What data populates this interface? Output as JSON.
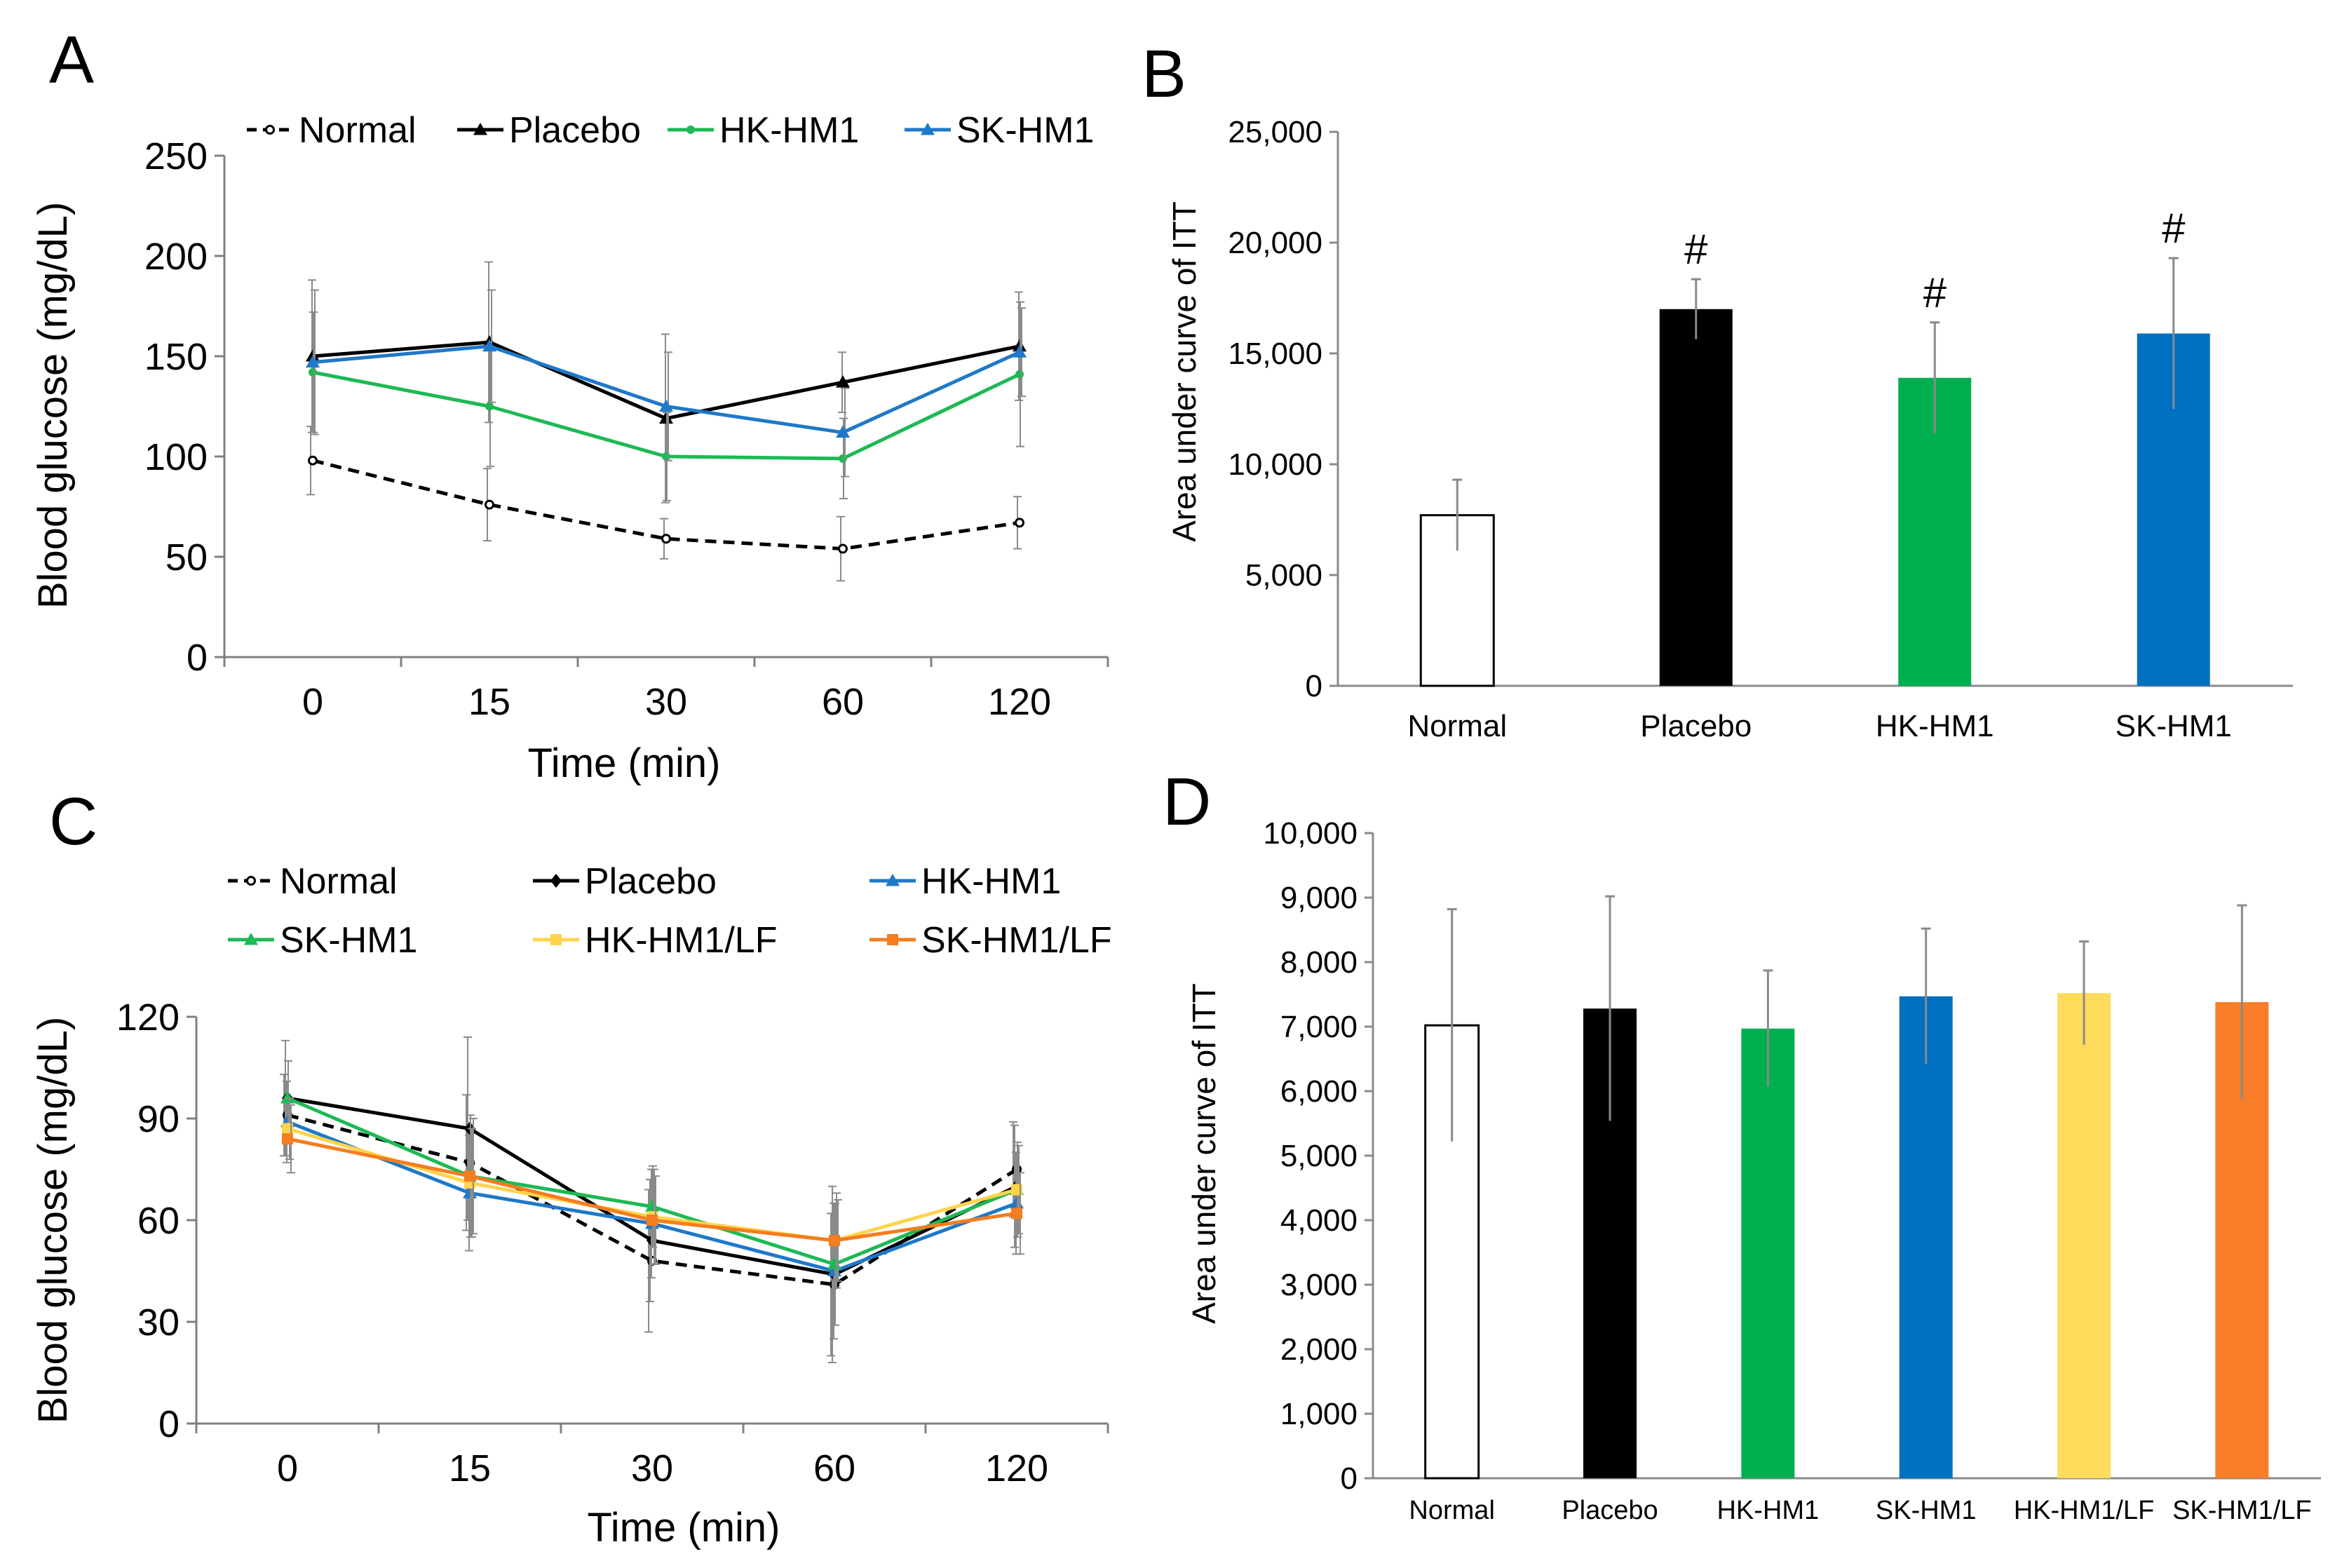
{
  "colors": {
    "black": "#000000",
    "green": "#1db954",
    "blue": "#1f78c8",
    "bar_green": "#00b050",
    "bar_blue": "#0070c0",
    "yellow": "#ffd44d",
    "bar_yellow": "#ffdb5c",
    "orange": "#f47d20",
    "bar_orange": "#f87e2a",
    "error": "#808080"
  },
  "panels": [
    {
      "letter": "A"
    },
    {
      "letter": "B"
    },
    {
      "letter": "C"
    },
    {
      "letter": "D"
    }
  ],
  "chart_data": [
    {
      "id": "A",
      "type": "line",
      "title": "",
      "xlabel": "Time (min)",
      "ylabel": "Blood glucose (mg/dL)",
      "categories": [
        "0",
        "15",
        "30",
        "60",
        "120"
      ],
      "ylim": [
        0,
        250
      ],
      "yticks": [
        "0",
        "50",
        "100",
        "150",
        "200",
        "250"
      ],
      "legend_position": "top",
      "series": [
        {
          "name": "Normal",
          "color": "#000000",
          "marker": "circle-open",
          "dashed": true,
          "values": [
            98,
            76,
            59,
            54,
            67
          ],
          "errors": [
            17,
            18,
            10,
            16,
            13
          ]
        },
        {
          "name": "Placebo",
          "color": "#000000",
          "marker": "triangle",
          "dashed": false,
          "values": [
            150,
            157,
            119,
            137,
            155
          ],
          "errors": [
            38,
            40,
            42,
            15,
            27
          ]
        },
        {
          "name": "HK-HM1",
          "color": "#1db954",
          "marker": "circle",
          "dashed": false,
          "values": [
            142,
            125,
            100,
            99,
            141
          ],
          "errors": [
            30,
            30,
            22,
            20,
            36
          ]
        },
        {
          "name": "SK-HM1",
          "color": "#1f78c8",
          "marker": "triangle",
          "dashed": false,
          "values": [
            147,
            155,
            125,
            112,
            152
          ],
          "errors": [
            36,
            28,
            27,
            22,
            22
          ]
        }
      ]
    },
    {
      "id": "B",
      "type": "bar",
      "title": "",
      "xlabel": "",
      "ylabel": "Area under curve of ITT",
      "categories": [
        "Normal",
        "Placebo",
        "HK-HM1",
        "SK-HM1"
      ],
      "values": [
        7700,
        17000,
        13900,
        15900
      ],
      "errors": [
        1600,
        1350,
        2500,
        3400
      ],
      "colors": [
        "#ffffff",
        "#000000",
        "#00b050",
        "#0070c0"
      ],
      "annotations": [
        "",
        "#",
        "#",
        "#"
      ],
      "ylim": [
        0,
        25000
      ],
      "yticks": [
        "0",
        "5,000",
        "10,000",
        "15,000",
        "20,000",
        "25,000"
      ]
    },
    {
      "id": "C",
      "type": "line",
      "title": "",
      "xlabel": "Time (min)",
      "ylabel": "Blood glucose (mg/dL)",
      "categories": [
        "0",
        "15",
        "30",
        "60",
        "120"
      ],
      "ylim": [
        0,
        120
      ],
      "yticks": [
        "0",
        "30",
        "60",
        "90",
        "120"
      ],
      "legend_position": "top",
      "series": [
        {
          "name": "Normal",
          "color": "#000000",
          "marker": "circle-open",
          "dashed": true,
          "values": [
            91,
            77,
            48,
            41,
            75
          ],
          "errors": [
            12,
            20,
            21,
            21,
            14
          ]
        },
        {
          "name": "Placebo",
          "color": "#000000",
          "marker": "diamond",
          "dashed": false,
          "values": [
            96,
            87,
            54,
            44,
            70
          ],
          "errors": [
            17,
            27,
            18,
            26,
            18
          ]
        },
        {
          "name": "HK-HM1",
          "color": "#1f78c8",
          "marker": "triangle",
          "dashed": false,
          "values": [
            89,
            68,
            59,
            45,
            65
          ],
          "errors": [
            12,
            17,
            16,
            20,
            15
          ]
        },
        {
          "name": "SK-HM1",
          "color": "#1db954",
          "marker": "triangle",
          "dashed": false,
          "values": [
            96,
            73,
            64,
            47,
            69
          ],
          "errors": [
            11,
            18,
            12,
            18,
            14
          ]
        },
        {
          "name": "HK-HM1/LF",
          "color": "#ffd44d",
          "marker": "square",
          "dashed": false,
          "values": [
            87,
            71,
            61,
            54,
            69
          ],
          "errors": [
            9,
            16,
            14,
            14,
            13
          ]
        },
        {
          "name": "SK-HM1/LF",
          "color": "#f47d20",
          "marker": "square",
          "dashed": false,
          "values": [
            84,
            73,
            60,
            54,
            62
          ],
          "errors": [
            10,
            17,
            13,
            12,
            12
          ]
        }
      ]
    },
    {
      "id": "D",
      "type": "bar",
      "title": "",
      "xlabel": "",
      "ylabel": "Area under curve of ITT",
      "categories": [
        "Normal",
        "Placebo",
        "HK-HM1",
        "SK-HM1",
        "HK-HM1/LF",
        "SK-HM1/LF"
      ],
      "values": [
        7020,
        7280,
        6970,
        7470,
        7520,
        7380
      ],
      "errors": [
        1800,
        1740,
        900,
        1050,
        800,
        1500
      ],
      "colors": [
        "#ffffff",
        "#000000",
        "#00b050",
        "#0070c0",
        "#ffdb5c",
        "#f87e2a"
      ],
      "annotations": [
        "",
        "",
        "",
        "",
        "",
        ""
      ],
      "ylim": [
        0,
        10000
      ],
      "yticks": [
        "0",
        "1,000",
        "2,000",
        "3,000",
        "4,000",
        "5,000",
        "6,000",
        "7,000",
        "8,000",
        "9,000",
        "10,000"
      ]
    }
  ]
}
